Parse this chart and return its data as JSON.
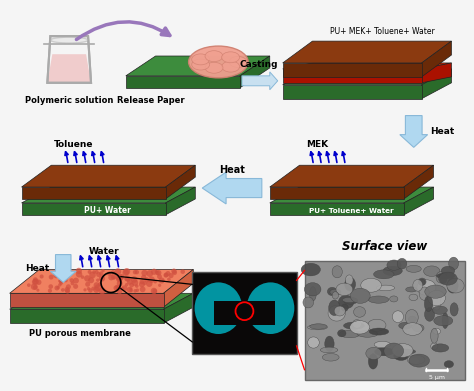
{
  "bg_color": "#f5f5f5",
  "green_top": "#3d8c3d",
  "green_side": "#2a6b2a",
  "brown_top": "#8B3A10",
  "brown_side": "#6a2a08",
  "red_layer": "#cc2200",
  "salmon_top": "#f08060",
  "salmon_side": "#d06040",
  "labels": {
    "polymeric_solution": "Polymeric solution",
    "release_paper": "Release Paper",
    "casting": "Casting",
    "pu_mek_toluene_water": "PU+ MEK+ Toluene+ Water",
    "heat1": "Heat",
    "mek": "MEK",
    "pu_toluene_water": "PU+ Toluene+ Water",
    "heat2": "Heat",
    "toluene": "Toluene",
    "pu_water": "PU+ Water",
    "heat3": "Heat",
    "water": "Water",
    "pu_porous": "PU porous membrane",
    "surface_view": "Surface view",
    "scale": "5 μm"
  }
}
